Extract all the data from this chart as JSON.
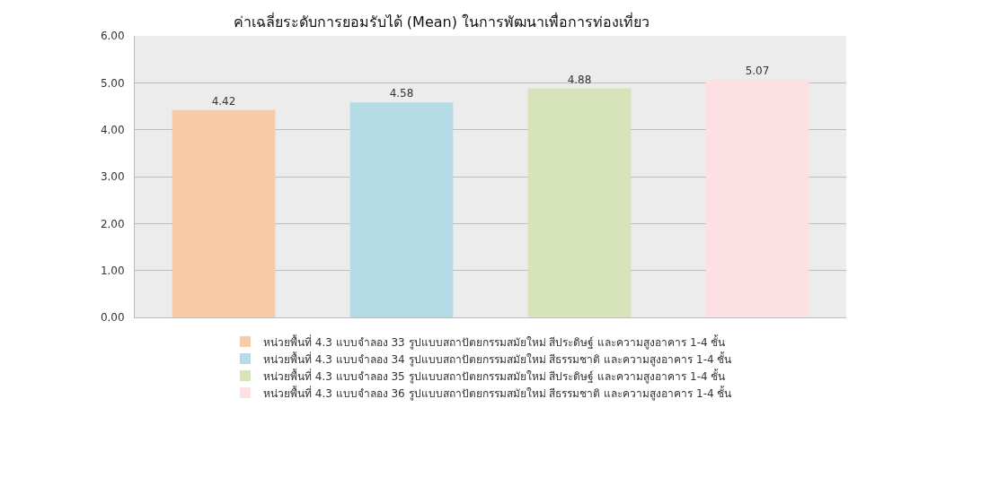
{
  "chart_data": {
    "type": "bar",
    "title": "ค่าเฉลี่ยระดับการยอมรับได้ (Mean) ในการพัฒนาเพื่อการท่องเที่ยว",
    "categories": [
      null,
      null,
      null,
      null
    ],
    "series": [
      {
        "name": "หน่วยพื้นที่ 4.3 แบบจำลอง 33 รูปแบบสถาปัตยกรรมสมัยใหม่ สีประดิษฐ์ และความสูงอาคาร 1-4 ชั้น",
        "color": "#f8cba6",
        "values": [
          4.42,
          null,
          null,
          null
        ]
      },
      {
        "name": "หน่วยพื้นที่ 4.3 แบบจำลอง 34 รูปแบบสถาปัตยกรรมสมัยใหม่ สีธรรมชาติ และความสูงอาคาร 1-4 ชั้น",
        "color": "#b5dce6",
        "values": [
          null,
          4.58,
          null,
          null
        ]
      },
      {
        "name": "หน่วยพื้นที่ 4.3 แบบจำลอง 35 รูปแบบสถาปัตยกรรมสมัยใหม่ สีประดิษฐ์ และความสูงอาคาร 1-4 ชั้น",
        "color": "#d7e3b8",
        "values": [
          null,
          null,
          4.88,
          null
        ]
      },
      {
        "name": "หน่วยพื้นที่ 4.3 แบบจำลอง 36 รูปแบบสถาปัตยกรรมสมัยใหม่ สีธรรมชาติ และความสูงอาคาร 1-4 ชั้น",
        "color": "#fde0e3",
        "values": [
          null,
          null,
          null,
          5.07
        ]
      }
    ],
    "ylim": [
      0,
      6
    ],
    "yticks": [
      {
        "value": 0,
        "label": "0.00"
      },
      {
        "value": 1,
        "label": "1.00"
      },
      {
        "value": 2,
        "label": "2.00"
      },
      {
        "value": 3,
        "label": "3.00"
      },
      {
        "value": 4,
        "label": "4.00"
      },
      {
        "value": 5,
        "label": "5.00"
      },
      {
        "value": 6,
        "label": "6.00"
      }
    ],
    "grid": "y",
    "legend": "bottom",
    "data_labels": true
  }
}
